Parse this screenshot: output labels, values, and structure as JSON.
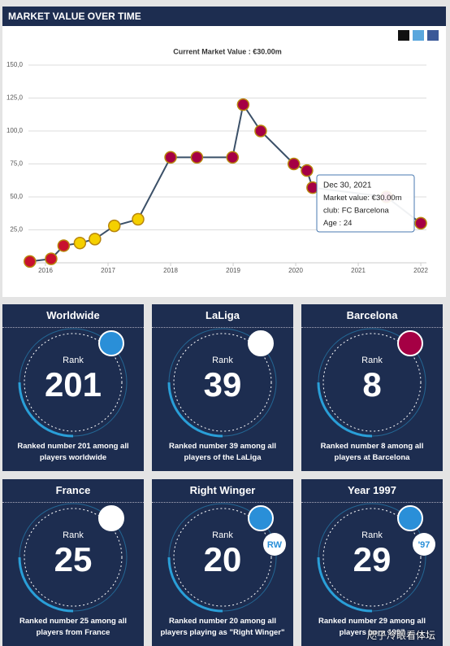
{
  "chart_data": {
    "type": "line",
    "title": "MARKET VALUE OVER TIME",
    "subtitle": "Current Market Value : €30.00m",
    "x": [
      2015.75,
      2016.09,
      2016.29,
      2016.55,
      2016.79,
      2017.1,
      2017.48,
      2018.0,
      2018.42,
      2018.99,
      2019.16,
      2019.44,
      2019.97,
      2020.18,
      2020.27,
      2021.45,
      2022.0
    ],
    "values": [
      1,
      3,
      13,
      15,
      18,
      28,
      33,
      80,
      80,
      80,
      120,
      100,
      75,
      70,
      57,
      50,
      30
    ],
    "point_colors": [
      "#c8102e",
      "#c8102e",
      "#c8102e",
      "#f5d000",
      "#f5d000",
      "#f5d000",
      "#f5d000",
      "#a50044",
      "#a50044",
      "#a50044",
      "#a50044",
      "#a50044",
      "#a50044",
      "#a50044",
      "#a50044",
      "#a50044",
      "#a50044"
    ],
    "color": "#3b5068",
    "xlim": [
      2015.727,
      2022.09
    ],
    "xticks": [
      2016,
      2017,
      2018,
      2019,
      2020,
      2021,
      2022
    ],
    "ylim": [
      0,
      150
    ],
    "yticks": [
      {
        "value": 25,
        "label": "25,0"
      },
      {
        "value": 50,
        "label": "50,0"
      },
      {
        "value": 75,
        "label": "75,0"
      },
      {
        "value": 100,
        "label": "100,0"
      },
      {
        "value": 125,
        "label": "125,0"
      },
      {
        "value": 150,
        "label": "150,0"
      }
    ],
    "grid": true,
    "tooltip": [
      "Dec 30, 2021",
      "Market value: €30.00m",
      "club: FC Barcelona",
      "Age : 24"
    ]
  },
  "cards": [
    {
      "title": "Worldwide",
      "label": "Rank",
      "value": 201,
      "description": "Ranked number 201 among all players worldwide"
    },
    {
      "title": "LaLiga",
      "label": "Rank",
      "value": 39,
      "description": "Ranked number 39 among all players of the LaLiga"
    },
    {
      "title": "Barcelona",
      "label": "Rank",
      "value": 8,
      "description": "Ranked number 8 among all players at Barcelona"
    },
    {
      "title": "France",
      "label": "Rank",
      "value": 25,
      "description": "Ranked number 25 among all players from France"
    },
    {
      "title": "Right Winger",
      "label": "Rank",
      "value": 20,
      "description": "Ranked number 20 among all players playing as \"Right Winger\"",
      "badge": "RW"
    },
    {
      "title": "Year 1997",
      "label": "Rank",
      "value": 29,
      "description": "Ranked number 29 among all players born 1997",
      "badge": "'97"
    }
  ],
  "watermark": "咫子冷眼看体坛"
}
